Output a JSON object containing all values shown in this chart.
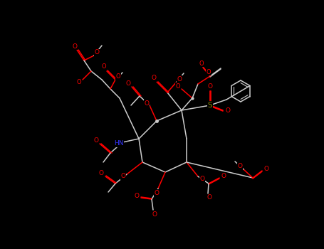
{
  "bg": "#000000",
  "O": "#ff0000",
  "N": "#3333ff",
  "S": "#888800",
  "W": "#cccccc",
  "figsize": [
    4.55,
    3.5
  ],
  "dpi": 100
}
